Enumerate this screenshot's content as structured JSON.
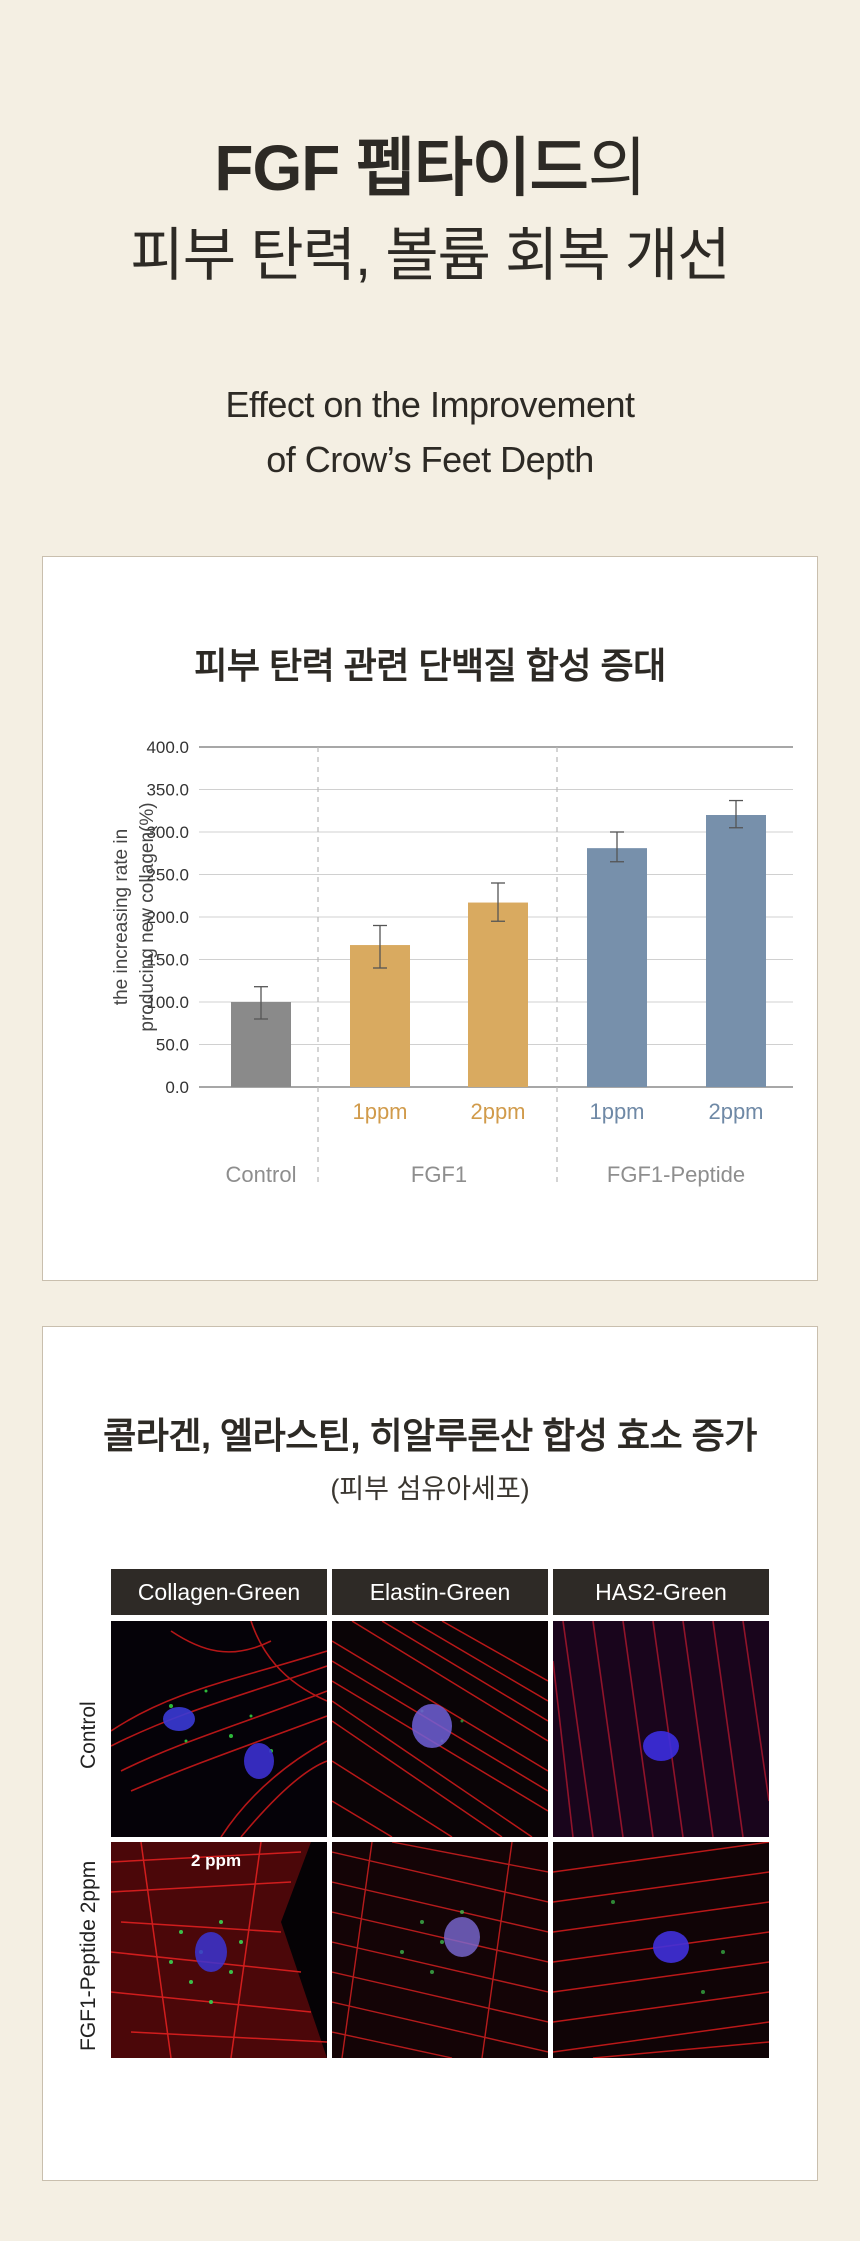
{
  "hero": {
    "title_bold": "FGF 펩타이드",
    "title_suffix": "의",
    "title_line2": "피부 탄력, 볼륨 회복 개선",
    "subtitle_line1": "Effect on the Improvement",
    "subtitle_line2": "of Crow’s Feet Depth"
  },
  "chart_card": {
    "title": "피부 탄력 관련 단백질 합성 증대"
  },
  "chart_data": {
    "type": "bar",
    "title": "피부 탄력 관련 단백질 합성 증대",
    "ylabel_line1": "the increasing rate in",
    "ylabel_line2": "producing new collagen(%)",
    "xlabel": "",
    "ylim": [
      0,
      400
    ],
    "yticks": [
      "0.0",
      "50.0",
      "100.0",
      "150.0",
      "200.0",
      "250.0",
      "300.0",
      "350.0",
      "400.0"
    ],
    "grid": true,
    "categories": [
      "",
      "1ppm",
      "2ppm",
      "1ppm",
      "2ppm"
    ],
    "groups": [
      "Control",
      "FGF1",
      "FGF1-Peptide"
    ],
    "values": [
      100,
      167,
      217,
      281,
      320
    ],
    "error_low": [
      80,
      140,
      195,
      265,
      305
    ],
    "error_high": [
      118,
      190,
      240,
      300,
      337
    ],
    "colors": [
      "#8a8a8a",
      "#d9aa60",
      "#d9aa60",
      "#7790ab",
      "#7790ab"
    ],
    "label_colors": [
      "#8a8a8a",
      "#d19b4b",
      "#d19b4b",
      "#6f89a6",
      "#6f89a6"
    ],
    "group_label_color": "#8e8e8e"
  },
  "image_card": {
    "title": "콜라겐, 엘라스틴, 히알루론산 합성 효소 증가",
    "subtitle": "(피부 섬유아세포)",
    "columns": [
      "Collagen-Green",
      "Elastin-Green",
      "HAS2-Green"
    ],
    "rows": [
      "Control",
      "FGF1-Peptide 2ppm"
    ],
    "inset_label": "2 ppm"
  }
}
